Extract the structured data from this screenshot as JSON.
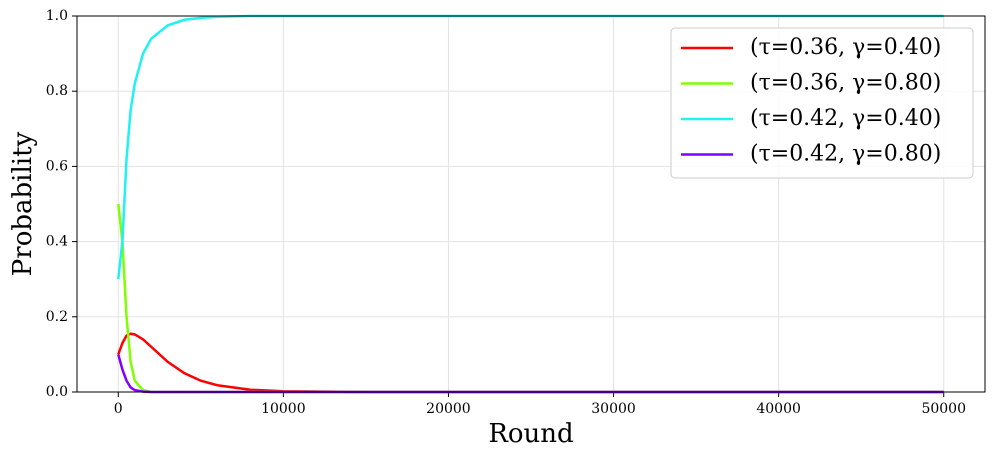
{
  "chart_data": {
    "type": "line",
    "x_label": "Round",
    "y_label": "Probability",
    "x": [
      0,
      250,
      500,
      750,
      1000,
      1500,
      2000,
      3000,
      4000,
      5000,
      6000,
      8000,
      10000,
      15000,
      20000,
      30000,
      40000,
      50000
    ],
    "series": [
      {
        "name": "(τ=0.36, γ=0.40)",
        "color": "#ff0000",
        "values": [
          0.1,
          0.13,
          0.15,
          0.155,
          0.153,
          0.14,
          0.12,
          0.08,
          0.05,
          0.03,
          0.018,
          0.006,
          0.002,
          0,
          0,
          0,
          0,
          0
        ]
      },
      {
        "name": "(τ=0.36, γ=0.80)",
        "color": "#80ff00",
        "values": [
          0.5,
          0.4,
          0.2,
          0.08,
          0.03,
          0.005,
          0,
          0,
          0,
          0,
          0,
          0,
          0,
          0,
          0,
          0,
          0,
          0
        ]
      },
      {
        "name": "(τ=0.42, γ=0.40)",
        "color": "#1ef2f2",
        "values": [
          0.3,
          0.4,
          0.62,
          0.75,
          0.82,
          0.9,
          0.94,
          0.975,
          0.99,
          0.995,
          0.998,
          1,
          1,
          1,
          1,
          1,
          1,
          1
        ]
      },
      {
        "name": "(τ=0.42, γ=0.80)",
        "color": "#7f00ff",
        "values": [
          0.1,
          0.06,
          0.03,
          0.012,
          0.005,
          0.001,
          0,
          0,
          0,
          0,
          0,
          0,
          0,
          0,
          0,
          0,
          0,
          0
        ]
      }
    ],
    "xlim": [
      -2500,
      52500
    ],
    "ylim": [
      0,
      1
    ],
    "xticks": [
      0,
      10000,
      20000,
      30000,
      40000,
      50000
    ],
    "yticks": [
      {
        "value": 0,
        "label": "0.0"
      },
      0.2,
      0.4,
      0.6,
      0.8,
      {
        "value": 1,
        "label": "1.0"
      }
    ],
    "grid": true,
    "legend": "upper right"
  }
}
